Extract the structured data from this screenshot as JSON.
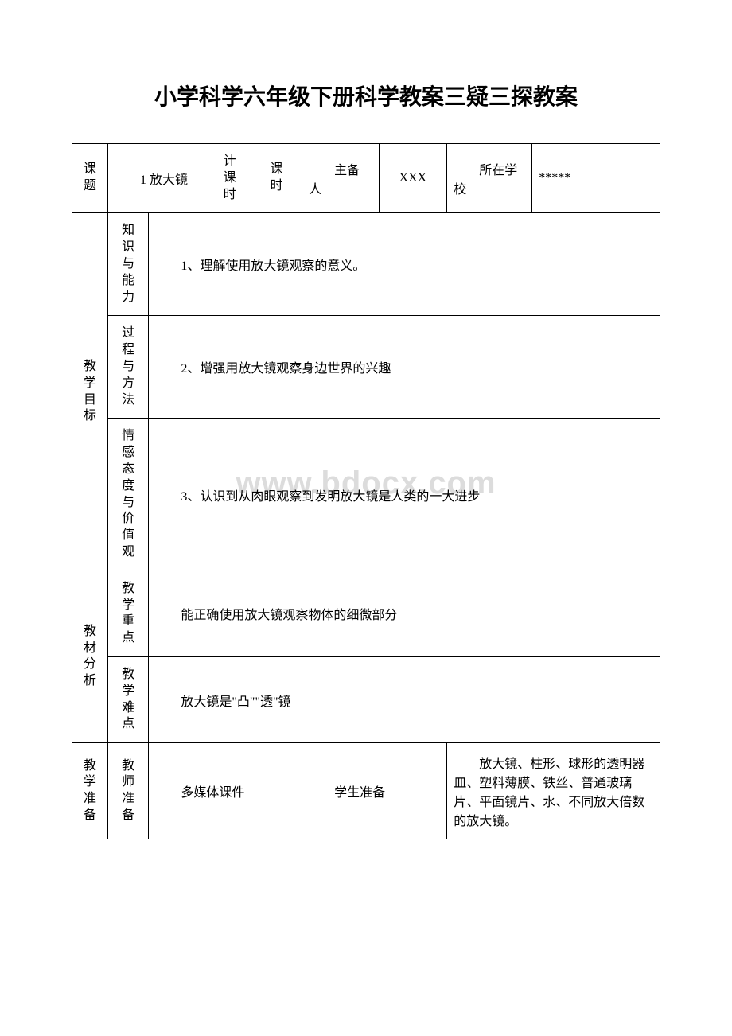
{
  "page_title": "小学科学六年级下册科学教案三疑三探教案",
  "watermark": "www.bdocx.com",
  "header": {
    "labels": {
      "topic": "课题",
      "plan_hours": "计课时",
      "hours": "课时",
      "preparer": "主备人",
      "school": "所在学校"
    },
    "values": {
      "topic": "1 放大镜",
      "plan_hours": "",
      "hours": "",
      "preparer": "XXX",
      "school": "*****"
    }
  },
  "objectives": {
    "section_label": "教学目标",
    "rows": [
      {
        "label": "知识与能力",
        "content": "1、理解使用放大镜观察的意义。"
      },
      {
        "label": "过程与方法",
        "content": "2、增强用放大镜观察身边世界的兴趣"
      },
      {
        "label": "情感态度与价值观",
        "content": "3、认识到从肉眼观察到发明放大镜是人类的一大进步"
      }
    ]
  },
  "analysis": {
    "section_label": "教材分析",
    "rows": [
      {
        "label": "教学重点",
        "content": "能正确使用放大镜观察物体的细微部分"
      },
      {
        "label": "教学难点",
        "content": "放大镜是\"凸\"\"透\"镜"
      }
    ]
  },
  "preparation": {
    "section_label": "教学准备",
    "teacher_label": "教师准备",
    "teacher_content": "多媒体课件",
    "student_label": "学生准备",
    "student_content": "　　放大镜、柱形、球形的透明器皿、塑料薄膜、铁丝、普通玻璃片、平面镜片、水、不同放大倍数的放大镜。"
  }
}
